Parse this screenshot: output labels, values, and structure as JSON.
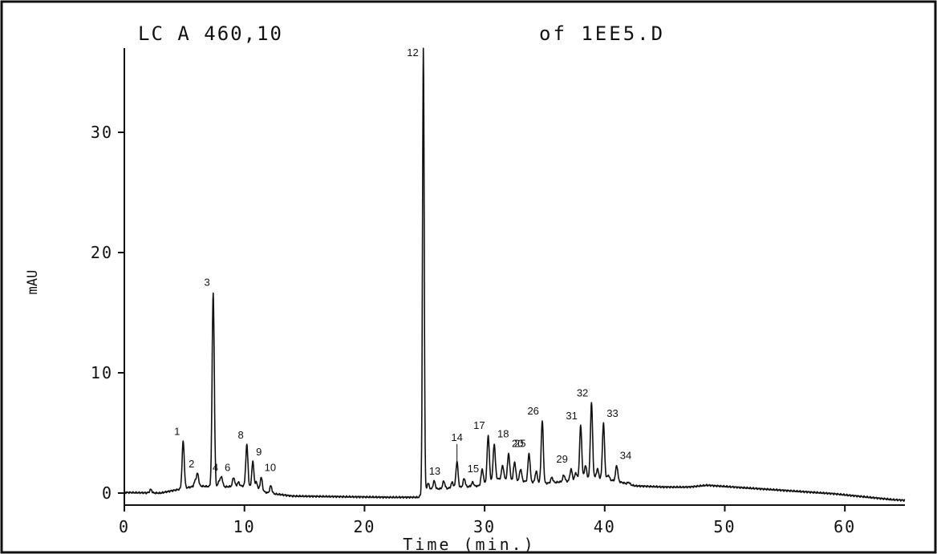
{
  "header": {
    "left": "LC A 460,10",
    "right": "of 1EE5.D"
  },
  "chart_data": {
    "type": "line",
    "title": "LC A 460,10 of 1EE5.D",
    "xlabel": "Time (min.)",
    "ylabel": "mAU",
    "xlim": [
      0,
      65
    ],
    "ylim": [
      -1,
      37
    ],
    "xticks": [
      {
        "value": 0,
        "label": "0"
      },
      {
        "value": 10,
        "label": "10"
      },
      {
        "value": 20,
        "label": "20"
      },
      {
        "value": 30,
        "label": "30"
      },
      {
        "value": 40,
        "label": "40"
      },
      {
        "value": 50,
        "label": "50"
      },
      {
        "value": 60,
        "label": "60"
      }
    ],
    "yticks": [
      {
        "value": 0,
        "label": "0"
      },
      {
        "value": 10,
        "label": "10"
      },
      {
        "value": 20,
        "label": "20"
      },
      {
        "value": 30,
        "label": "30"
      }
    ],
    "grid": false,
    "legend": "none",
    "color": "#111111",
    "peaks": [
      {
        "label": "1",
        "x": 4.9,
        "y": 4.3
      },
      {
        "label": "2",
        "x": 6.1,
        "y": 1.6
      },
      {
        "label": "3",
        "x": 7.4,
        "y": 16.7
      },
      {
        "label": "4",
        "x": 8.1,
        "y": 1.3
      },
      {
        "label": "6",
        "x": 9.1,
        "y": 1.3
      },
      {
        "label": "8",
        "x": 10.2,
        "y": 4.0
      },
      {
        "label": "9",
        "x": 10.7,
        "y": 2.6
      },
      {
        "label": "10",
        "x": 11.4,
        "y": 1.3
      },
      {
        "label": "12",
        "x": 24.9,
        "y": 37.0
      },
      {
        "label": "13",
        "x": 26.6,
        "y": 1.0
      },
      {
        "label": "14",
        "x": 27.7,
        "y": 2.6
      },
      {
        "label": "15",
        "x": 28.3,
        "y": 1.2
      },
      {
        "label": "17",
        "x": 30.3,
        "y": 4.8
      },
      {
        "label": "18",
        "x": 30.8,
        "y": 4.1
      },
      {
        "label": "20",
        "x": 32.0,
        "y": 3.3
      },
      {
        "label": "25",
        "x": 33.7,
        "y": 3.3
      },
      {
        "label": "26",
        "x": 34.8,
        "y": 6.0
      },
      {
        "label": "29",
        "x": 37.2,
        "y": 2.0
      },
      {
        "label": "31",
        "x": 38.0,
        "y": 5.6
      },
      {
        "label": "32",
        "x": 38.9,
        "y": 7.5
      },
      {
        "label": "33",
        "x": 39.9,
        "y": 5.8
      },
      {
        "label": "34",
        "x": 41.0,
        "y": 2.3
      }
    ],
    "minor_peaks": [
      {
        "x": 2.2,
        "y": 0.3
      },
      {
        "x": 5.9,
        "y": 1.0
      },
      {
        "x": 7.9,
        "y": 1.0
      },
      {
        "x": 9.5,
        "y": 0.9
      },
      {
        "x": 11.0,
        "y": 0.9
      },
      {
        "x": 12.2,
        "y": 0.6
      },
      {
        "x": 25.3,
        "y": 0.8
      },
      {
        "x": 25.8,
        "y": 1.0
      },
      {
        "x": 27.3,
        "y": 0.9
      },
      {
        "x": 29.0,
        "y": 0.9
      },
      {
        "x": 29.8,
        "y": 2.0
      },
      {
        "x": 31.5,
        "y": 2.3
      },
      {
        "x": 32.5,
        "y": 2.6
      },
      {
        "x": 33.0,
        "y": 2.0
      },
      {
        "x": 34.3,
        "y": 1.8
      },
      {
        "x": 35.6,
        "y": 1.3
      },
      {
        "x": 36.6,
        "y": 1.5
      },
      {
        "x": 37.6,
        "y": 1.7
      },
      {
        "x": 38.4,
        "y": 2.3
      },
      {
        "x": 39.4,
        "y": 2.0
      },
      {
        "x": 40.3,
        "y": 1.5
      },
      {
        "x": 42.0,
        "y": 0.9
      }
    ],
    "baseline": [
      {
        "x": 0,
        "y": 0.05
      },
      {
        "x": 3,
        "y": 0.0
      },
      {
        "x": 4.5,
        "y": 0.3
      },
      {
        "x": 6,
        "y": 0.6
      },
      {
        "x": 8,
        "y": 0.5
      },
      {
        "x": 10,
        "y": 0.6
      },
      {
        "x": 12,
        "y": 0.0
      },
      {
        "x": 14,
        "y": -0.25
      },
      {
        "x": 18,
        "y": -0.3
      },
      {
        "x": 22,
        "y": -0.35
      },
      {
        "x": 24.5,
        "y": -0.35
      },
      {
        "x": 25.2,
        "y": 0.3
      },
      {
        "x": 27,
        "y": 0.4
      },
      {
        "x": 29.5,
        "y": 0.6
      },
      {
        "x": 31,
        "y": 1.2
      },
      {
        "x": 33,
        "y": 1.0
      },
      {
        "x": 35,
        "y": 0.8
      },
      {
        "x": 37,
        "y": 1.0
      },
      {
        "x": 39,
        "y": 1.3
      },
      {
        "x": 41,
        "y": 1.0
      },
      {
        "x": 42.5,
        "y": 0.6
      },
      {
        "x": 45,
        "y": 0.5
      },
      {
        "x": 47,
        "y": 0.5
      },
      {
        "x": 48.5,
        "y": 0.65
      },
      {
        "x": 50,
        "y": 0.55
      },
      {
        "x": 53,
        "y": 0.35
      },
      {
        "x": 56,
        "y": 0.15
      },
      {
        "x": 59,
        "y": -0.05
      },
      {
        "x": 62,
        "y": -0.35
      },
      {
        "x": 64,
        "y": -0.55
      },
      {
        "x": 65,
        "y": -0.6
      }
    ]
  }
}
